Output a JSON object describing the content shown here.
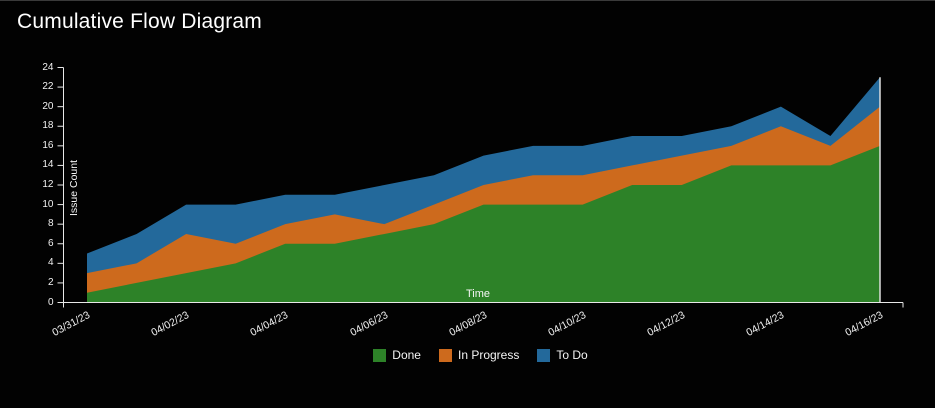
{
  "window": {
    "background": "#020202"
  },
  "chart_data": {
    "type": "area",
    "stacked": true,
    "title": "Cumulative Flow Diagram",
    "xlabel": "Time",
    "ylabel": "Issue Count",
    "ylim": [
      0,
      24
    ],
    "y_ticks": [
      0,
      2,
      4,
      6,
      8,
      10,
      12,
      14,
      16,
      18,
      20,
      22,
      24
    ],
    "x_tick_labels": [
      "03/31/23",
      "04/02/23",
      "04/04/23",
      "04/06/23",
      "04/08/23",
      "04/10/23",
      "04/12/23",
      "04/14/23",
      "04/16/23"
    ],
    "x_points": [
      "03/31/23",
      "04/01/23",
      "04/02/23",
      "04/03/23",
      "04/04/23",
      "04/05/23",
      "04/06/23",
      "04/07/23",
      "04/08/23",
      "04/09/23",
      "04/10/23",
      "04/11/23",
      "04/12/23",
      "04/13/23",
      "04/14/23",
      "04/15/23",
      "04/16/23"
    ],
    "series": [
      {
        "name": "Done",
        "color": "#2d8228",
        "values": [
          1,
          2,
          3,
          4,
          6,
          6,
          7,
          8,
          10,
          10,
          10,
          12,
          12,
          14,
          14,
          14,
          16
        ]
      },
      {
        "name": "In Progress",
        "color": "#cd6a1d",
        "values": [
          2,
          2,
          4,
          2,
          2,
          3,
          1,
          2,
          2,
          3,
          3,
          2,
          3,
          2,
          4,
          2,
          4
        ]
      },
      {
        "name": "To Do",
        "color": "#23699b",
        "values": [
          2,
          3,
          3,
          4,
          3,
          2,
          4,
          3,
          3,
          3,
          3,
          3,
          2,
          2,
          2,
          1,
          3
        ]
      }
    ],
    "cumulative_totals": [
      5,
      7,
      10,
      10,
      11,
      11,
      12,
      13,
      15,
      16,
      16,
      17,
      17,
      18,
      20,
      17,
      23
    ],
    "legend_position": "bottom",
    "grid": false,
    "axis_color": "#e8e8e8",
    "text_color": "#f5f5f5"
  }
}
